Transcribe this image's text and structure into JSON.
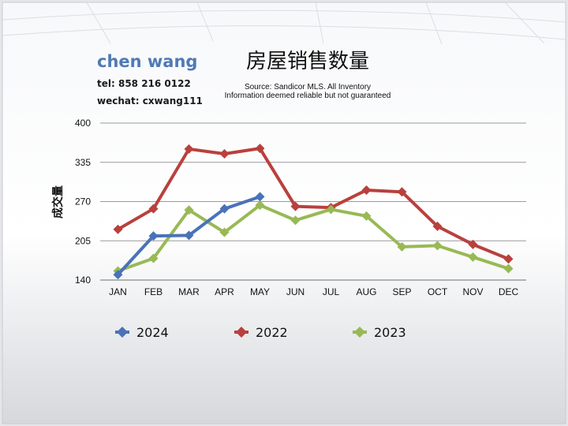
{
  "agent": {
    "name": "chen wang",
    "tel": "tel: 858 216 0122",
    "wechat": "wechat: cxwang111"
  },
  "source": {
    "line1": "Source: Sandicor MLS. All Inventory",
    "line2": "Information deemed reliable but not guaranteed"
  },
  "colors": {
    "2024": "#4a72b8",
    "2022": "#b9403d",
    "2023": "#98b955"
  },
  "chart_data": {
    "type": "line",
    "title": "房屋销售数量",
    "ylabel": "成交量",
    "xlabel": "",
    "categories": [
      "JAN",
      "FEB",
      "MAR",
      "APR",
      "MAY",
      "JUN",
      "JUL",
      "AUG",
      "SEP",
      "OCT",
      "NOV",
      "DEC"
    ],
    "ylim": [
      140,
      400
    ],
    "yticks": [
      140,
      205,
      270,
      335,
      400
    ],
    "grid": true,
    "legend": "bottom",
    "series": [
      {
        "name": "2024",
        "values": [
          149,
          213,
          214,
          258,
          278,
          null,
          null,
          null,
          null,
          null,
          null,
          null
        ]
      },
      {
        "name": "2022",
        "values": [
          224,
          258,
          357,
          349,
          358,
          262,
          260,
          289,
          286,
          229,
          199,
          175
        ]
      },
      {
        "name": "2023",
        "values": [
          155,
          176,
          256,
          219,
          264,
          239,
          257,
          246,
          195,
          197,
          178,
          159
        ]
      }
    ]
  }
}
